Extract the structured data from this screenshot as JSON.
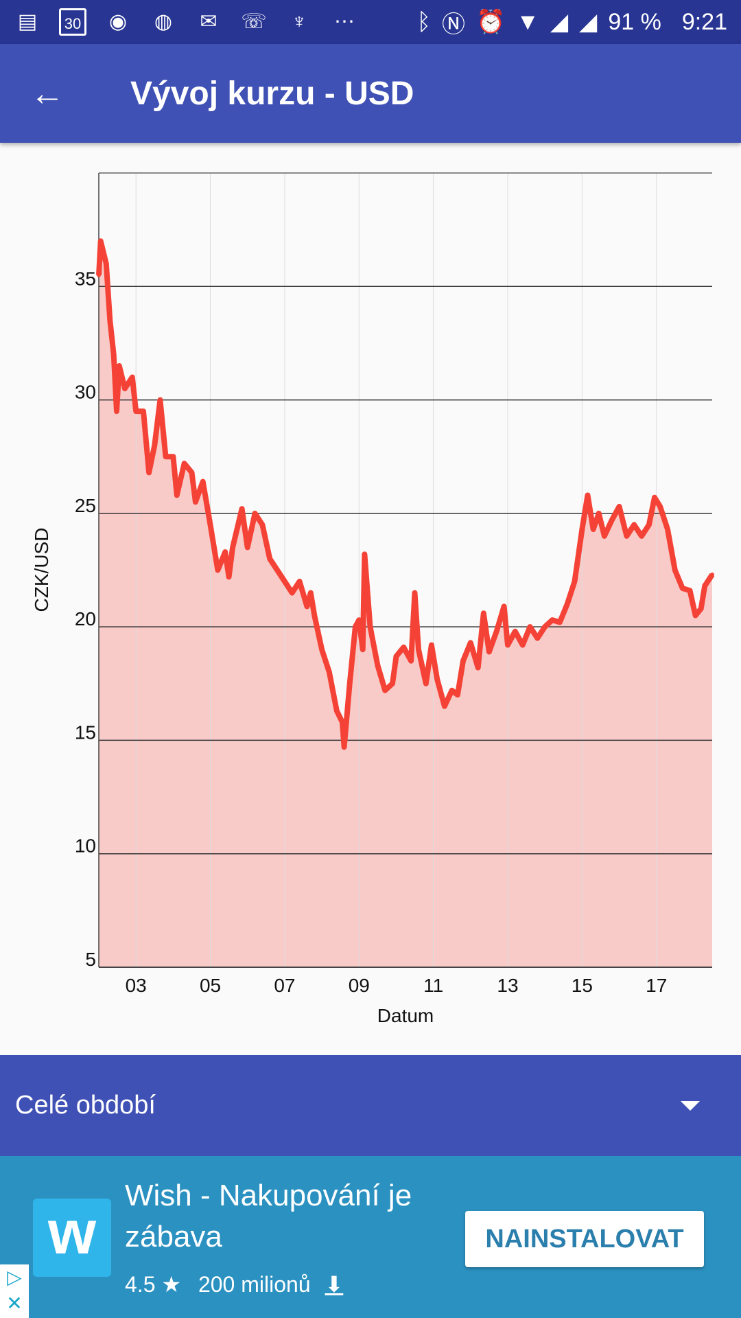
{
  "status_bar": {
    "battery": "91 %",
    "time": "9:21",
    "calendar_day": "30",
    "icons": [
      "message-icon",
      "calendar-icon",
      "binoculars-icon",
      "yr-icon",
      "gmail-icon",
      "missed-call-icon",
      "tulip-icon",
      "more-icon",
      "bluetooth-icon",
      "nfc-icon",
      "alarm-icon",
      "wifi-icon",
      "signal-icon",
      "signal-icon"
    ]
  },
  "app_bar": {
    "title": "Vývoj kurzu - USD",
    "back_icon": "arrow-back-icon"
  },
  "period_select": {
    "selected": "Celé období"
  },
  "ad": {
    "title": "Wish - Nakupování je zábava",
    "rating": "4.5",
    "downloads": "200 milionů",
    "button": "NAINSTALOVAT"
  },
  "chart_data": {
    "type": "area",
    "title": "",
    "xlabel": "Datum",
    "ylabel": "CZK/USD",
    "xlim": [
      2002.0,
      2018.5
    ],
    "ylim": [
      5,
      40
    ],
    "xticks": [
      2003,
      2005,
      2007,
      2009,
      2011,
      2013,
      2015,
      2017
    ],
    "xtick_labels": [
      "03",
      "05",
      "07",
      "09",
      "11",
      "13",
      "15",
      "17"
    ],
    "yticks": [
      5,
      10,
      15,
      20,
      25,
      30,
      35
    ],
    "grid": true,
    "line_color": "#f44336",
    "fill_color": "#f8cbc9",
    "x": [
      2002.0,
      2002.05,
      2002.2,
      2002.3,
      2002.4,
      2002.48,
      2002.55,
      2002.7,
      2002.9,
      2003.0,
      2003.2,
      2003.35,
      2003.5,
      2003.65,
      2003.8,
      2004.0,
      2004.1,
      2004.3,
      2004.5,
      2004.6,
      2004.8,
      2005.0,
      2005.2,
      2005.4,
      2005.5,
      2005.6,
      2005.85,
      2006.0,
      2006.2,
      2006.4,
      2006.6,
      2006.8,
      2007.0,
      2007.2,
      2007.4,
      2007.6,
      2007.7,
      2007.8,
      2008.0,
      2008.2,
      2008.4,
      2008.55,
      2008.6,
      2008.75,
      2008.9,
      2009.0,
      2009.1,
      2009.15,
      2009.3,
      2009.5,
      2009.7,
      2009.9,
      2010.0,
      2010.2,
      2010.4,
      2010.5,
      2010.6,
      2010.8,
      2010.95,
      2011.1,
      2011.3,
      2011.5,
      2011.65,
      2011.8,
      2012.0,
      2012.2,
      2012.35,
      2012.5,
      2012.7,
      2012.9,
      2013.0,
      2013.2,
      2013.4,
      2013.6,
      2013.8,
      2014.0,
      2014.2,
      2014.4,
      2014.6,
      2014.8,
      2015.0,
      2015.15,
      2015.3,
      2015.45,
      2015.6,
      2015.8,
      2016.0,
      2016.2,
      2016.4,
      2016.6,
      2016.8,
      2016.95,
      2017.1,
      2017.3,
      2017.5,
      2017.7,
      2017.9,
      2018.05,
      2018.2,
      2018.3,
      2018.5
    ],
    "y": [
      35.5,
      37,
      36,
      33.5,
      32,
      29.5,
      31.5,
      30.5,
      31,
      29.5,
      29.5,
      26.8,
      28,
      30,
      27.5,
      27.5,
      25.8,
      27.2,
      26.8,
      25.5,
      26.4,
      24.5,
      22.5,
      23.3,
      22.2,
      23.5,
      25.2,
      23.5,
      25,
      24.5,
      23,
      22.5,
      22,
      21.5,
      22,
      20.9,
      21.5,
      20.5,
      19,
      18,
      16.3,
      15.8,
      14.7,
      17.5,
      20,
      20.3,
      19,
      23.2,
      20,
      18.3,
      17.2,
      17.5,
      18.7,
      19.1,
      18.5,
      21.5,
      19,
      17.5,
      19.2,
      17.7,
      16.5,
      17.2,
      17,
      18.5,
      19.3,
      18.2,
      20.6,
      18.9,
      19.8,
      20.9,
      19.2,
      19.8,
      19.2,
      20,
      19.5,
      20,
      20.3,
      20.2,
      21,
      22,
      24.3,
      25.8,
      24.3,
      25,
      24,
      24.7,
      25.3,
      24,
      24.5,
      24,
      24.5,
      25.7,
      25.3,
      24.3,
      22.5,
      21.7,
      21.6,
      20.5,
      20.8,
      21.8,
      22.3
    ]
  }
}
